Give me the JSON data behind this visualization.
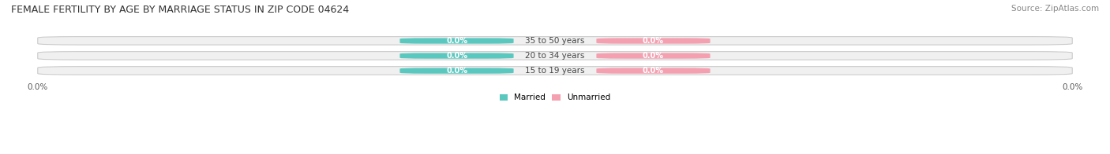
{
  "title": "FEMALE FERTILITY BY AGE BY MARRIAGE STATUS IN ZIP CODE 04624",
  "source": "Source: ZipAtlas.com",
  "categories": [
    "15 to 19 years",
    "20 to 34 years",
    "35 to 50 years"
  ],
  "married_values": [
    0.0,
    0.0,
    0.0
  ],
  "unmarried_values": [
    0.0,
    0.0,
    0.0
  ],
  "married_color": "#5BC8C0",
  "unmarried_color": "#F4A0B0",
  "bar_bg_color": "#F0F0F0",
  "bar_border_color": "#CCCCCC",
  "label_married_color": "#5BC8C0",
  "label_unmarried_color": "#F4A0B0",
  "title_fontsize": 9,
  "source_fontsize": 7.5,
  "tick_label_fontsize": 7.5,
  "bar_label_fontsize": 7,
  "category_fontsize": 7.5,
  "xlim": [
    -1,
    1
  ],
  "background_color": "#FFFFFF",
  "x_tick_left": -1.0,
  "x_tick_right": 1.0,
  "x_tick_label_left": "0.0%",
  "x_tick_label_right": "0.0%"
}
